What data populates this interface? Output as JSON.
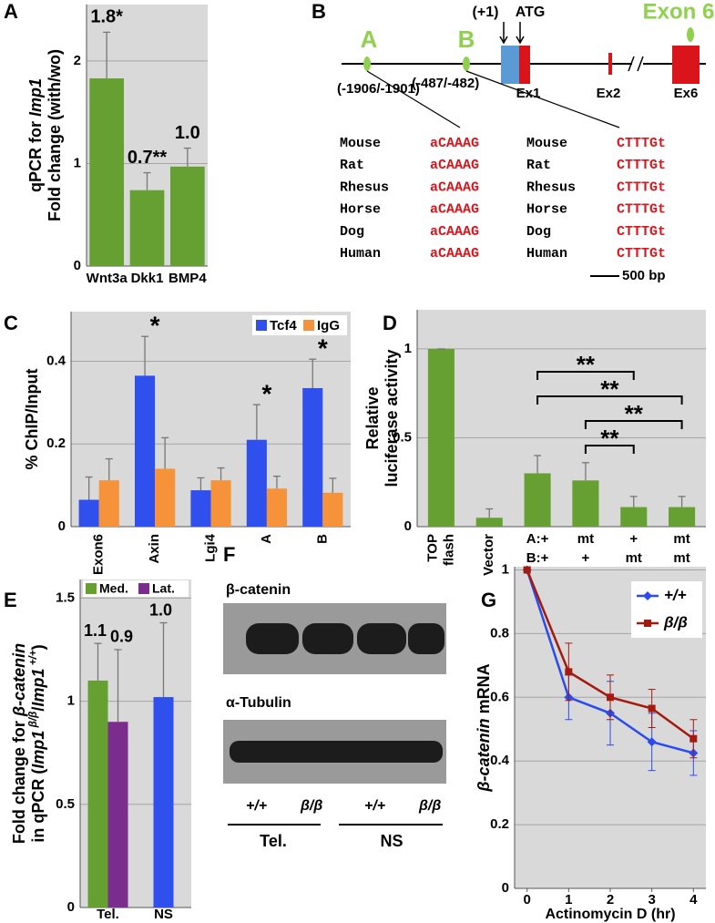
{
  "panel_labels": [
    "A",
    "B",
    "C",
    "D",
    "E",
    "F",
    "G"
  ],
  "chart_data": [
    {
      "type": "bar",
      "ylabel": [
        [
          {
            "text": "qPCR for "
          },
          {
            "text": "Imp1",
            "italic": true
          }
        ],
        [
          {
            "text": "Fold change (with/wo)"
          }
        ]
      ],
      "categories": [
        "Wnt3a",
        "Dkk1",
        "BMP4"
      ],
      "values": [
        1.83,
        0.74,
        0.97
      ],
      "errors": [
        0.45,
        0.17,
        0.18
      ],
      "value_labels": [
        "1.8*",
        "0.7**",
        "1.0"
      ],
      "color": "#66a032",
      "ylim": [
        0,
        2.55
      ],
      "yticks": [
        0,
        1,
        2
      ],
      "grid": true
    },
    {
      "type": "bar",
      "ylabel": [
        [
          {
            "text": "% ChIP/Input"
          }
        ]
      ],
      "categories": [
        "Exon6",
        "Axin",
        "Lgi4",
        "A",
        "B"
      ],
      "rotate_categories": true,
      "series": [
        {
          "name": "Tcf4",
          "color": "#3050ee",
          "values": [
            0.065,
            0.365,
            0.088,
            0.21,
            0.335
          ],
          "errors": [
            0.055,
            0.095,
            0.03,
            0.085,
            0.07
          ]
        },
        {
          "name": "IgG",
          "color": "#f5923a",
          "values": [
            0.112,
            0.14,
            0.112,
            0.092,
            0.082
          ],
          "errors": [
            0.052,
            0.075,
            0.03,
            0.03,
            0.035
          ]
        }
      ],
      "annotations": [
        {
          "category": 1,
          "text": "*"
        },
        {
          "category": 3,
          "text": "*"
        },
        {
          "category": 4,
          "text": "*"
        }
      ],
      "legend": "top-right",
      "ylim": [
        0,
        0.52
      ],
      "yticks": [
        0,
        0.2,
        0.4
      ],
      "grid": true
    },
    {
      "type": "bar",
      "ylabel": [
        [
          {
            "text": "Relative"
          }
        ],
        [
          {
            "text": "luciferase activity"
          }
        ]
      ],
      "categories": [
        [
          "TOP",
          "flash"
        ],
        [
          "Vector"
        ],
        [
          "A:+",
          "B:+"
        ],
        [
          "mt",
          "+"
        ],
        [
          "+",
          "mt"
        ],
        [
          "mt",
          "mt"
        ]
      ],
      "rotate_categories": [
        true,
        true,
        false,
        false,
        false,
        false
      ],
      "values": [
        1.0,
        0.05,
        0.3,
        0.26,
        0.11,
        0.11
      ],
      "errors": [
        0,
        0.05,
        0.1,
        0.1,
        0.06,
        0.06
      ],
      "color": "#66a032",
      "comparisons": [
        {
          "from": 2,
          "to": 4,
          "label": "**"
        },
        {
          "from": 2,
          "to": 5,
          "label": "**"
        },
        {
          "from": 3,
          "to": 5,
          "label": "**"
        },
        {
          "from": 3,
          "to": 4,
          "label": "**"
        }
      ],
      "ylim": [
        0,
        1.22
      ],
      "yticks": [
        0,
        0.5,
        1
      ],
      "grid": true
    },
    {
      "type": "grouped_bar",
      "ylabel": [
        [
          {
            "text": "Fold change for "
          },
          {
            "text": "β-catenin",
            "italic": true
          }
        ],
        [
          {
            "text": "in qPCR ("
          },
          {
            "text": "Imp1",
            "italic": true
          },
          {
            "text": " β/β",
            "italic": true,
            "sup": true
          },
          {
            "text": "/"
          },
          {
            "text": "Imp1",
            "italic": true
          },
          {
            "text": " +/+",
            "italic": true,
            "sup": true
          },
          {
            "text": ")"
          }
        ]
      ],
      "categories": [
        "Tel.",
        "NS"
      ],
      "groups": [
        [
          {
            "value": 1.1,
            "error": 0.18,
            "value_label": "1.1",
            "color": "#66a032"
          },
          {
            "value": 0.9,
            "error": 0.35,
            "value_label": "0.9",
            "color": "#7b2d8e"
          }
        ],
        [
          {
            "value": 1.02,
            "error": 0.36,
            "value_label": "1.0",
            "color": "#3050ee"
          }
        ]
      ],
      "legend": [
        {
          "name": "Med.",
          "color": "#66a032"
        },
        {
          "name": "Lat.",
          "color": "#7b2d8e"
        }
      ],
      "ylim": [
        0,
        1.59
      ],
      "yticks": [
        0,
        0.5,
        1,
        1.5
      ],
      "grid": true
    },
    {
      "type": "line",
      "xlabel": "Actinomycin D (hr)",
      "ylabel": [
        [
          {
            "text": "β-catenin",
            "italic": true
          },
          {
            "text": " mRNA"
          }
        ]
      ],
      "x": [
        0,
        1,
        2,
        3,
        4
      ],
      "series": [
        {
          "name": "+/+",
          "color": "#2a4bf0",
          "marker": "diamond",
          "values": [
            1,
            0.6,
            0.55,
            0.46,
            0.425
          ],
          "errors": [
            0,
            0.07,
            0.1,
            0.09,
            0.07
          ]
        },
        {
          "name": "β/β",
          "color": "#a31a0f",
          "marker": "square",
          "values": [
            1,
            0.68,
            0.6,
            0.565,
            0.47
          ],
          "errors": [
            0,
            0.09,
            0.07,
            0.06,
            0.06
          ]
        }
      ],
      "legend": "top-right",
      "xlim": [
        -0.3,
        4.3
      ],
      "xticks": [
        0,
        1,
        2,
        3,
        4
      ],
      "ylim": [
        0,
        1.01
      ],
      "yticks": [
        0,
        0.2,
        0.4,
        0.6,
        0.8,
        1
      ],
      "grid": true
    }
  ],
  "diagram": {
    "site_a": "A",
    "site_b": "B",
    "tss": "(+1)",
    "atg": "ATG",
    "exon6": "Exon 6",
    "site_a_position": "(-1906/-1901)",
    "site_b_position": "(-487/-482)",
    "exons": [
      "Ex1",
      "Ex2",
      "Ex6"
    ],
    "alignment_a": [
      {
        "species": "Mouse",
        "sequence": "aCAAAG"
      },
      {
        "species": "Rat",
        "sequence": "aCAAAG"
      },
      {
        "species": "Rhesus",
        "sequence": "aCAAAG"
      },
      {
        "species": "Horse",
        "sequence": "aCAAAG"
      },
      {
        "species": "Dog",
        "sequence": "aCAAAG"
      },
      {
        "species": "Human",
        "sequence": "aCAAAG"
      }
    ],
    "alignment_b": [
      {
        "species": "Mouse",
        "sequence": "CTTTGt"
      },
      {
        "species": "Rat",
        "sequence": "CTTTGt"
      },
      {
        "species": "Rhesus",
        "sequence": "CTTTGt"
      },
      {
        "species": "Horse",
        "sequence": "CTTTGt"
      },
      {
        "species": "Dog",
        "sequence": "CTTTGt"
      },
      {
        "species": "Human",
        "sequence": "CTTTGt"
      }
    ],
    "scale": "500 bp"
  },
  "blot": {
    "proteins": [
      "β-catenin",
      "α-Tubulin"
    ],
    "lanes": [
      "+/+",
      "β/β",
      "+/+",
      "β/β"
    ],
    "groups": [
      "Tel.",
      "NS"
    ]
  }
}
